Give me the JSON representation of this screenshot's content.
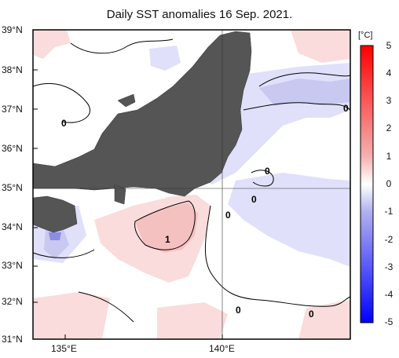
{
  "title": "Daily SST anomalies 16 Sep. 2021.",
  "unit_label": "[°C]",
  "lat_labels": [
    "39°N",
    "38°N",
    "37°N",
    "36°N",
    "35°N",
    "34°N",
    "33°N",
    "32°N",
    "31°N"
  ],
  "lon_labels": [
    "135°E",
    "140°E"
  ],
  "colorbar_ticks": [
    "5",
    "4",
    "3",
    "2",
    "1",
    "0",
    "-1",
    "-2",
    "-3",
    "-4",
    "-5"
  ],
  "contour_labels": [
    "0",
    "0",
    "0",
    "0",
    "0",
    "1",
    "0",
    "0"
  ],
  "colors": {
    "land": "#555555",
    "light_red": "#fadcdc",
    "mid_red": "#f5c0c0",
    "light_blue": "#e0e0fa",
    "mid_blue": "#c8c8f0",
    "max_red": "#ff0000",
    "max_blue": "#0000ff"
  },
  "chart_data": {
    "type": "heatmap",
    "title": "Daily SST anomalies 16 Sep. 2021.",
    "lon_range": [
      134,
      144
    ],
    "lat_range": [
      31,
      39
    ],
    "colorbar_range": [
      -5,
      5
    ],
    "unit": "°C",
    "contour_levels": [
      0,
      1
    ]
  }
}
